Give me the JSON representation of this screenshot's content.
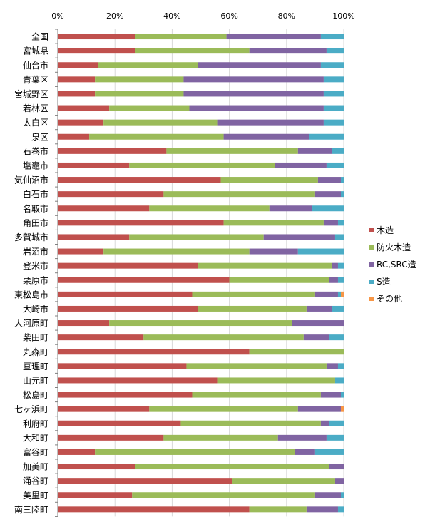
{
  "chart_data": {
    "type": "bar",
    "orientation": "horizontal",
    "stacked": "percent",
    "xlim": [
      0,
      100
    ],
    "x_ticks": [
      "0%",
      "20%",
      "40%",
      "60%",
      "80%",
      "100%"
    ],
    "x_axis_position": "top",
    "grid": true,
    "legend_position": "right",
    "categories": [
      "全国",
      "宮城県",
      "仙台市",
      "青葉区",
      "宮城野区",
      "若林区",
      "太白区",
      "泉区",
      "石巻市",
      "塩竈市",
      "気仙沼市",
      "白石市",
      "名取市",
      "角田市",
      "多賀城市",
      "岩沼市",
      "登米市",
      "栗原市",
      "東松島市",
      "大崎市",
      "大河原町",
      "柴田町",
      "丸森町",
      "亘理町",
      "山元町",
      "松島町",
      "七ヶ浜町",
      "利府町",
      "大和町",
      "富谷町",
      "加美町",
      "涌谷町",
      "美里町",
      "南三陸町"
    ],
    "series": [
      {
        "name": "木造",
        "color": "#C0504D",
        "values": [
          27,
          27,
          14,
          13,
          13,
          18,
          16,
          11,
          38,
          25,
          57,
          37,
          32,
          58,
          25,
          16,
          49,
          60,
          47,
          49,
          18,
          30,
          67,
          45,
          56,
          47,
          32,
          43,
          37,
          13,
          27,
          61,
          26,
          67
        ]
      },
      {
        "name": "防火木造",
        "color": "#9BBB59",
        "values": [
          32,
          40,
          35,
          31,
          31,
          28,
          40,
          47,
          46,
          51,
          34,
          53,
          42,
          35,
          47,
          51,
          47,
          35,
          43,
          38,
          64,
          56,
          33,
          49,
          41,
          45,
          52,
          49,
          40,
          70,
          68,
          36,
          64,
          20
        ]
      },
      {
        "name": "RC,SRC造",
        "color": "#8064A2",
        "values": [
          33,
          27,
          43,
          49,
          49,
          47,
          37,
          30,
          12,
          18,
          8,
          9,
          15,
          5,
          25,
          17,
          2,
          3,
          8,
          9,
          18,
          9,
          0,
          4,
          0,
          7,
          15,
          3,
          17,
          7,
          5,
          3,
          9,
          11
        ]
      },
      {
        "name": "S造",
        "color": "#4BACC6",
        "values": [
          8,
          6,
          8,
          7,
          7,
          7,
          7,
          12,
          4,
          6,
          1,
          1,
          11,
          2,
          3,
          16,
          2,
          2,
          1,
          4,
          0,
          5,
          0,
          2,
          3,
          1,
          0,
          5,
          6,
          10,
          0,
          0,
          1,
          2
        ]
      },
      {
        "name": "その他",
        "color": "#F79646",
        "values": [
          0,
          0,
          0,
          0,
          0,
          0,
          0,
          0,
          0,
          0,
          0,
          0,
          0,
          0,
          0,
          0,
          0,
          0,
          1,
          0,
          0,
          0,
          0,
          0,
          0,
          0,
          1,
          0,
          0,
          0,
          0,
          0,
          0,
          0
        ]
      }
    ]
  }
}
